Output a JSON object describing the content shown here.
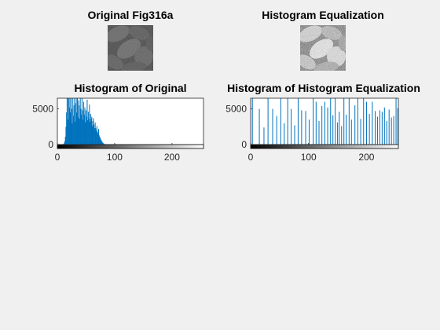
{
  "figure": {
    "background": "#f0f0f0"
  },
  "images": [
    {
      "title": "Original Fig316a",
      "variant": "dark-low-contrast"
    },
    {
      "title": "Histogram Equalization",
      "variant": "high-contrast"
    }
  ],
  "chart_data": [
    {
      "type": "bar",
      "title": "Histogram of Original",
      "xlabel": "",
      "ylabel": "",
      "xlim": [
        0,
        255
      ],
      "ylim": [
        0,
        6500
      ],
      "xticks": [
        0,
        100,
        200
      ],
      "yticks": [
        0,
        5000
      ],
      "xtick_labels": [
        "0",
        "100",
        "200"
      ],
      "ytick_labels": [
        "0",
        "5000"
      ],
      "bar_color": "#0072bd",
      "colorbar": "grayscale-ramp-0-255",
      "x": [
        10,
        11,
        12,
        13,
        14,
        15,
        16,
        17,
        18,
        19,
        20,
        21,
        22,
        23,
        24,
        25,
        26,
        27,
        28,
        29,
        30,
        31,
        32,
        33,
        34,
        35,
        36,
        37,
        38,
        39,
        40,
        41,
        42,
        43,
        44,
        45,
        46,
        47,
        48,
        49,
        50,
        51,
        52,
        53,
        54,
        55,
        56,
        57,
        58,
        59,
        60,
        61,
        62,
        63,
        64,
        65,
        66,
        67,
        68,
        69,
        70,
        71,
        72,
        73,
        74,
        75,
        76,
        77,
        78,
        79,
        80,
        81,
        82,
        83,
        84
      ],
      "values": [
        50,
        100,
        200,
        500,
        1100,
        2500,
        4500,
        6500,
        6500,
        3500,
        6500,
        5200,
        6500,
        4500,
        6500,
        5000,
        3000,
        6500,
        4000,
        5500,
        6500,
        3200,
        5800,
        6500,
        4500,
        6500,
        3800,
        6200,
        5500,
        3600,
        6500,
        5000,
        4200,
        6500,
        4800,
        3500,
        6000,
        4200,
        5200,
        3100,
        4800,
        3900,
        6300,
        3400,
        4600,
        3600,
        5600,
        3200,
        4300,
        3600,
        3900,
        2600,
        3300,
        3700,
        2800,
        2300,
        3100,
        2300,
        2000,
        2600,
        1800,
        1600,
        2200,
        1300,
        1100,
        900,
        700,
        600,
        400,
        300,
        200,
        150,
        100,
        60,
        30
      ],
      "grid": false
    },
    {
      "type": "bar",
      "title": "Histogram of Histogram Equalization",
      "xlabel": "",
      "ylabel": "",
      "xlim": [
        0,
        255
      ],
      "ylim": [
        0,
        6500
      ],
      "xticks": [
        0,
        100,
        200
      ],
      "yticks": [
        0,
        5000
      ],
      "xtick_labels": [
        "0",
        "100",
        "200"
      ],
      "ytick_labels": [
        "0",
        "5000"
      ],
      "bar_color": "#0072bd",
      "colorbar": "grayscale-ramp-0-255",
      "x": [
        3,
        15,
        23,
        30,
        38,
        45,
        52,
        58,
        64,
        70,
        76,
        82,
        88,
        95,
        101,
        108,
        113,
        118,
        123,
        128,
        133,
        138,
        142,
        146,
        150,
        153,
        157,
        161,
        165,
        170,
        174,
        180,
        185,
        190,
        195,
        200,
        205,
        210,
        215,
        219,
        223,
        227,
        231,
        235,
        239,
        243,
        247,
        251,
        254
      ],
      "values": [
        6500,
        5000,
        2400,
        6500,
        5000,
        4000,
        6500,
        3000,
        6500,
        5000,
        2700,
        6500,
        4800,
        4700,
        3500,
        6500,
        6000,
        3300,
        5400,
        6000,
        5200,
        6500,
        4100,
        6500,
        3100,
        4600,
        2600,
        6500,
        4200,
        6500,
        3500,
        5500,
        6500,
        3600,
        6500,
        6000,
        4300,
        6000,
        4700,
        3900,
        4800,
        4600,
        5200,
        3300,
        4900,
        3800,
        4000,
        6500,
        5100
      ],
      "grid": false
    }
  ]
}
